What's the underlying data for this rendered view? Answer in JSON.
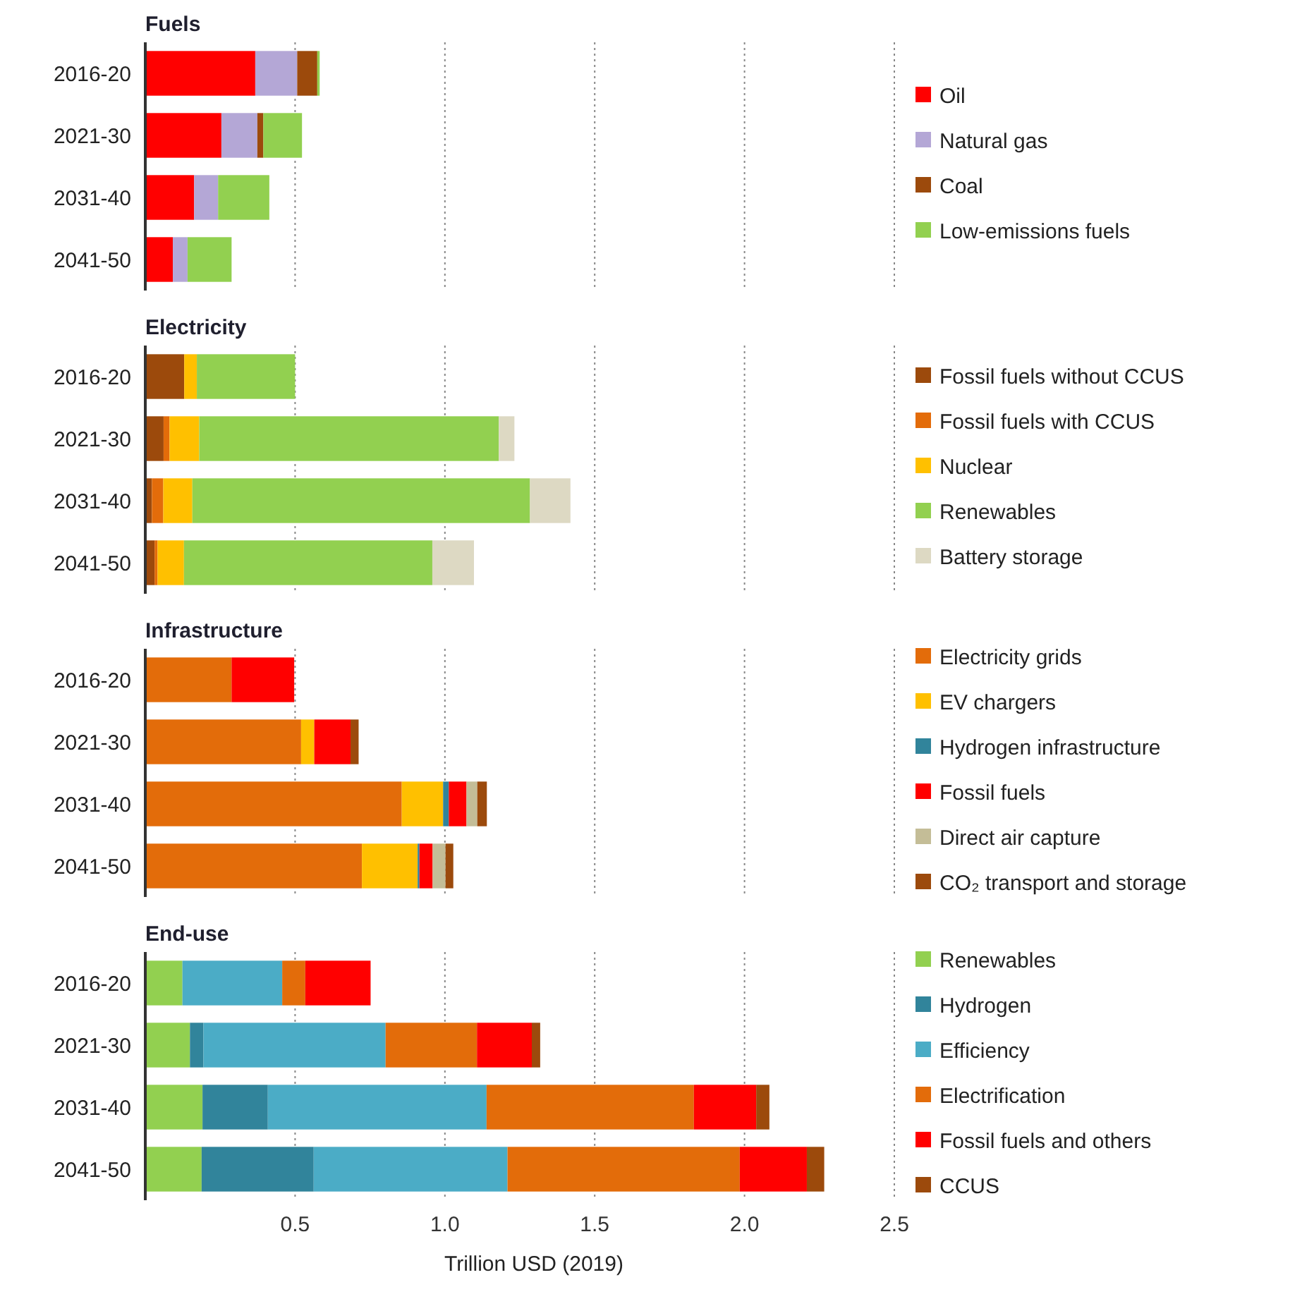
{
  "chart_data": [
    {
      "type": "bar",
      "orientation": "horizontal",
      "stacked": true,
      "title": "Fuels",
      "categories": [
        "2016-20",
        "2021-30",
        "2031-40",
        "2041-50"
      ],
      "xlim": [
        0,
        2.5
      ],
      "xticks": [
        0.5,
        1.0,
        1.5,
        2.0,
        2.5
      ],
      "grid": "x",
      "legend": "right",
      "tick_labels": "y",
      "series": [
        {
          "name": "Oil",
          "color": "#ff0000",
          "values": [
            0.367,
            0.254,
            0.163,
            0.092
          ]
        },
        {
          "name": "Natural gas",
          "color": "#b4a7d6",
          "values": [
            0.14,
            0.12,
            0.08,
            0.049
          ]
        },
        {
          "name": "Coal",
          "color": "#9c4a0c",
          "values": [
            0.067,
            0.02,
            null,
            null
          ]
        },
        {
          "name": "Low-emissions fuels",
          "color": "#92d050",
          "values": [
            0.008,
            0.129,
            0.171,
            0.147
          ]
        }
      ]
    },
    {
      "type": "bar",
      "orientation": "horizontal",
      "stacked": true,
      "title": "Electricity",
      "categories": [
        "2016-20",
        "2021-30",
        "2031-40",
        "2041-50"
      ],
      "xlim": [
        0,
        2.5
      ],
      "xticks": [
        0.5,
        1.0,
        1.5,
        2.0,
        2.5
      ],
      "grid": "x",
      "legend": "right",
      "tick_labels": "y",
      "series": [
        {
          "name": "Fossil fuels without CCUS",
          "color": "#9c4a0c",
          "values": [
            0.13,
            0.061,
            0.022,
            0.031
          ]
        },
        {
          "name": "Fossil fuels with CCUS",
          "color": "#e36c0a",
          "values": [
            null,
            0.02,
            0.038,
            0.01
          ]
        },
        {
          "name": "Nuclear",
          "color": "#ffc000",
          "values": [
            0.042,
            0.099,
            0.097,
            0.088
          ]
        },
        {
          "name": "Renewables",
          "color": "#92d050",
          "values": [
            0.328,
            1.0,
            1.127,
            0.829
          ]
        },
        {
          "name": "Battery storage",
          "color": "#ddd9c3",
          "values": [
            null,
            0.052,
            0.135,
            0.139
          ]
        }
      ]
    },
    {
      "type": "bar",
      "orientation": "horizontal",
      "stacked": true,
      "title": "Infrastructure",
      "categories": [
        "2016-20",
        "2021-30",
        "2031-40",
        "2041-50"
      ],
      "xlim": [
        0,
        2.5
      ],
      "xticks": [
        0.5,
        1.0,
        1.5,
        2.0,
        2.5
      ],
      "grid": "x",
      "legend": "right",
      "tick_labels": "y",
      "series": [
        {
          "name": "Electricity grids",
          "color": "#e36c0a",
          "values": [
            0.288,
            0.52,
            0.856,
            0.723
          ]
        },
        {
          "name": "EV chargers",
          "color": "#ffc000",
          "values": [
            null,
            0.044,
            0.138,
            0.186
          ]
        },
        {
          "name": "Hydrogen infrastructure",
          "color": "#31849b",
          "values": [
            null,
            null,
            0.019,
            0.006
          ]
        },
        {
          "name": "Fossil fuels",
          "color": "#ff0000",
          "values": [
            0.209,
            0.121,
            0.059,
            0.044
          ]
        },
        {
          "name": "Direct air capture",
          "color": "#c4bd97",
          "values": [
            null,
            null,
            0.036,
            0.043
          ]
        },
        {
          "name": "CO₂ transport and storage",
          "color": "#9c4a0c",
          "values": [
            null,
            0.027,
            0.032,
            0.026
          ]
        }
      ]
    },
    {
      "type": "bar",
      "orientation": "horizontal",
      "stacked": true,
      "title": "End-use",
      "xlabel": "Trillion USD (2019)",
      "categories": [
        "2016-20",
        "2021-30",
        "2031-40",
        "2041-50"
      ],
      "xlim": [
        0,
        2.5
      ],
      "xticks": [
        0.5,
        {
          "value": 1,
          "label": "1.0"
        },
        1.5,
        {
          "value": 2,
          "label": "2.0"
        },
        2.5
      ],
      "grid": "x",
      "legend": "right",
      "series": [
        {
          "name": "Renewables",
          "color": "#92d050",
          "values": [
            0.124,
            0.149,
            0.191,
            0.188
          ]
        },
        {
          "name": "Hydrogen",
          "color": "#31849b",
          "values": [
            null,
            0.045,
            0.218,
            0.374
          ]
        },
        {
          "name": "Efficiency",
          "color": "#4bacc6",
          "values": [
            0.333,
            0.608,
            0.73,
            0.647
          ]
        },
        {
          "name": "Electrification",
          "color": "#e36c0a",
          "values": [
            0.077,
            0.305,
            0.692,
            0.775
          ]
        },
        {
          "name": "Fossil fuels and others",
          "color": "#ff0000",
          "values": [
            0.218,
            0.183,
            0.208,
            0.224
          ]
        },
        {
          "name": "CCUS",
          "color": "#9c4a0c",
          "values": [
            null,
            0.028,
            0.044,
            0.058
          ]
        }
      ]
    }
  ]
}
